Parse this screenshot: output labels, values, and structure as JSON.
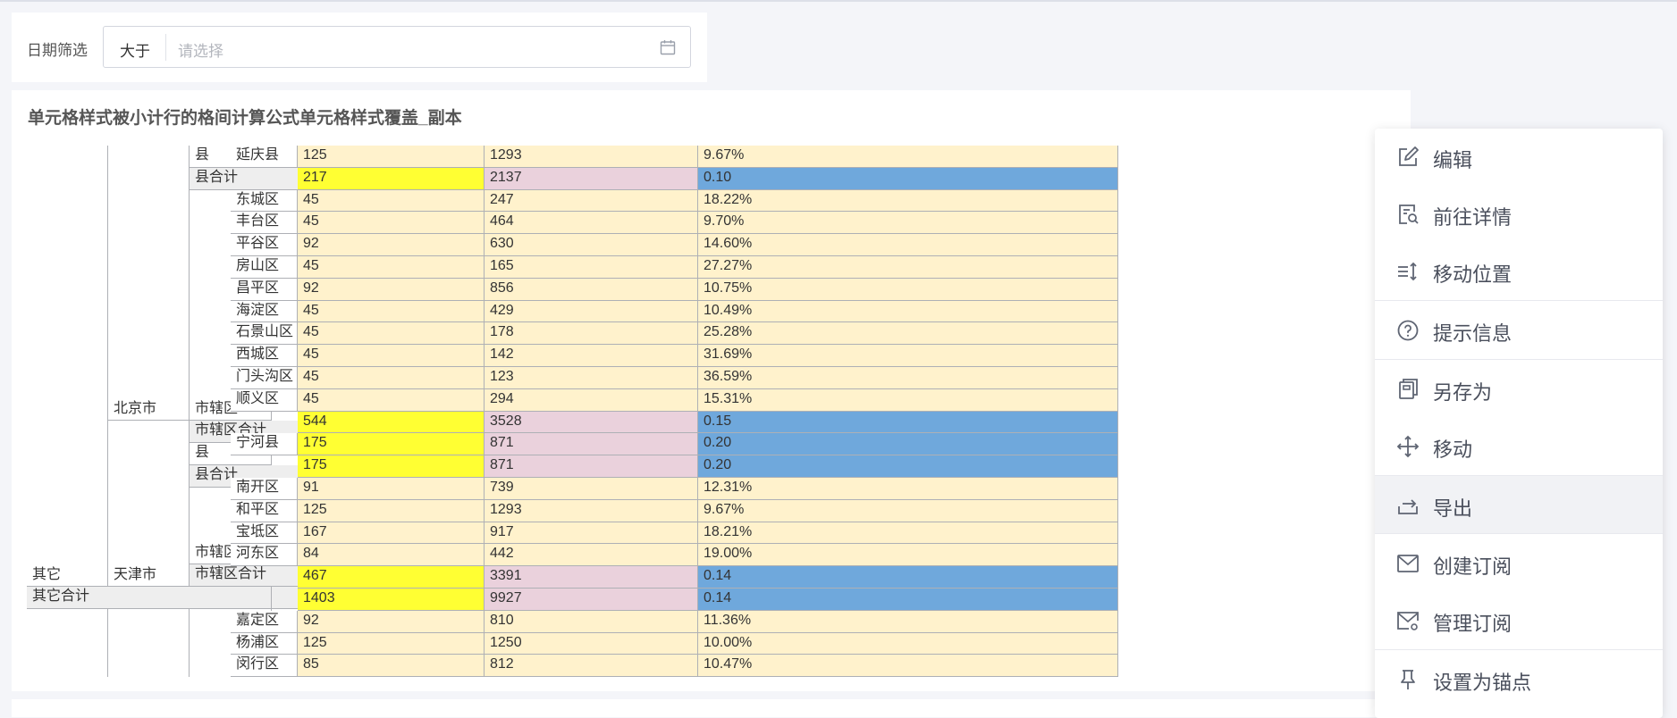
{
  "filter": {
    "label": "日期筛选",
    "operator": "大于",
    "placeholder": "请选择",
    "icon": "calendar-icon"
  },
  "table": {
    "title": "单元格样式被小计行的格间计算公式单元格样式覆盖_副本",
    "colors": {
      "value_default": "#fff2cc",
      "subtotal_col1": "#ffff33",
      "subtotal_col2": "#ead1dc",
      "subtotal_col3": "#6fa8dc",
      "subtotal_header": "#eeeeee"
    },
    "headers": {
      "l1_qita": "其它",
      "l1_qita_total": "其它合计",
      "l2_beijing": "北京市",
      "l2_tianjin": "天津市",
      "l3_xian_top": "县",
      "l3_xian_total_1": "县合计",
      "l3_shixiaqu_1": "市辖区",
      "l3_shixiaqu_total_1": "市辖区合计",
      "l3_xian_2": "县",
      "l3_xian_total_2": "县合计",
      "l3_shixiaqu_2": "市辖区",
      "l3_shixiaqu_total_2": "市辖区合计"
    },
    "rows": [
      {
        "l4": "延庆县",
        "v1": "125",
        "v2": "1293",
        "v3": "9.67%",
        "style": "n"
      },
      {
        "l4": "",
        "v1": "217",
        "v2": "2137",
        "v3": "0.10",
        "style": "t"
      },
      {
        "l4": "东城区",
        "v1": "45",
        "v2": "247",
        "v3": "18.22%",
        "style": "n"
      },
      {
        "l4": "丰台区",
        "v1": "45",
        "v2": "464",
        "v3": "9.70%",
        "style": "n"
      },
      {
        "l4": "平谷区",
        "v1": "92",
        "v2": "630",
        "v3": "14.60%",
        "style": "n"
      },
      {
        "l4": "房山区",
        "v1": "45",
        "v2": "165",
        "v3": "27.27%",
        "style": "n"
      },
      {
        "l4": "昌平区",
        "v1": "92",
        "v2": "856",
        "v3": "10.75%",
        "style": "n"
      },
      {
        "l4": "海淀区",
        "v1": "45",
        "v2": "429",
        "v3": "10.49%",
        "style": "n"
      },
      {
        "l4": "石景山区",
        "v1": "45",
        "v2": "178",
        "v3": "25.28%",
        "style": "n"
      },
      {
        "l4": "西城区",
        "v1": "45",
        "v2": "142",
        "v3": "31.69%",
        "style": "n"
      },
      {
        "l4": "门头沟区",
        "v1": "45",
        "v2": "123",
        "v3": "36.59%",
        "style": "n"
      },
      {
        "l4": "顺义区",
        "v1": "45",
        "v2": "294",
        "v3": "15.31%",
        "style": "n"
      },
      {
        "l4": "",
        "v1": "544",
        "v2": "3528",
        "v3": "0.15",
        "style": "t"
      },
      {
        "l4": "宁河县",
        "v1": "175",
        "v2": "871",
        "v3": "0.20",
        "style": "t"
      },
      {
        "l4": "",
        "v1": "175",
        "v2": "871",
        "v3": "0.20",
        "style": "t"
      },
      {
        "l4": "南开区",
        "v1": "91",
        "v2": "739",
        "v3": "12.31%",
        "style": "n"
      },
      {
        "l4": "和平区",
        "v1": "125",
        "v2": "1293",
        "v3": "9.67%",
        "style": "n"
      },
      {
        "l4": "宝坻区",
        "v1": "167",
        "v2": "917",
        "v3": "18.21%",
        "style": "n"
      },
      {
        "l4": "河东区",
        "v1": "84",
        "v2": "442",
        "v3": "19.00%",
        "style": "n"
      },
      {
        "l4": "",
        "v1": "467",
        "v2": "3391",
        "v3": "0.14",
        "style": "t"
      },
      {
        "l4": "",
        "v1": "1403",
        "v2": "9927",
        "v3": "0.14",
        "style": "t"
      },
      {
        "l4": "嘉定区",
        "v1": "92",
        "v2": "810",
        "v3": "11.36%",
        "style": "n"
      },
      {
        "l4": "杨浦区",
        "v1": "125",
        "v2": "1250",
        "v3": "10.00%",
        "style": "n"
      },
      {
        "l4": "闵行区",
        "v1": "85",
        "v2": "812",
        "v3": "10.47%",
        "style": "n"
      }
    ]
  },
  "menu": {
    "items": [
      {
        "label": "编辑",
        "icon": "edit-icon"
      },
      {
        "label": "前往详情",
        "icon": "detail-icon"
      },
      {
        "label": "移动位置",
        "icon": "reorder-icon"
      },
      {
        "label": "提示信息",
        "icon": "help-icon"
      },
      {
        "label": "另存为",
        "icon": "save-as-icon"
      },
      {
        "label": "移动",
        "icon": "move-icon"
      },
      {
        "label": "导出",
        "icon": "export-icon"
      },
      {
        "label": "创建订阅",
        "icon": "mail-icon"
      },
      {
        "label": "管理订阅",
        "icon": "mail-settings-icon"
      },
      {
        "label": "设置为锚点",
        "icon": "pin-icon"
      }
    ],
    "highlighted": "导出"
  }
}
